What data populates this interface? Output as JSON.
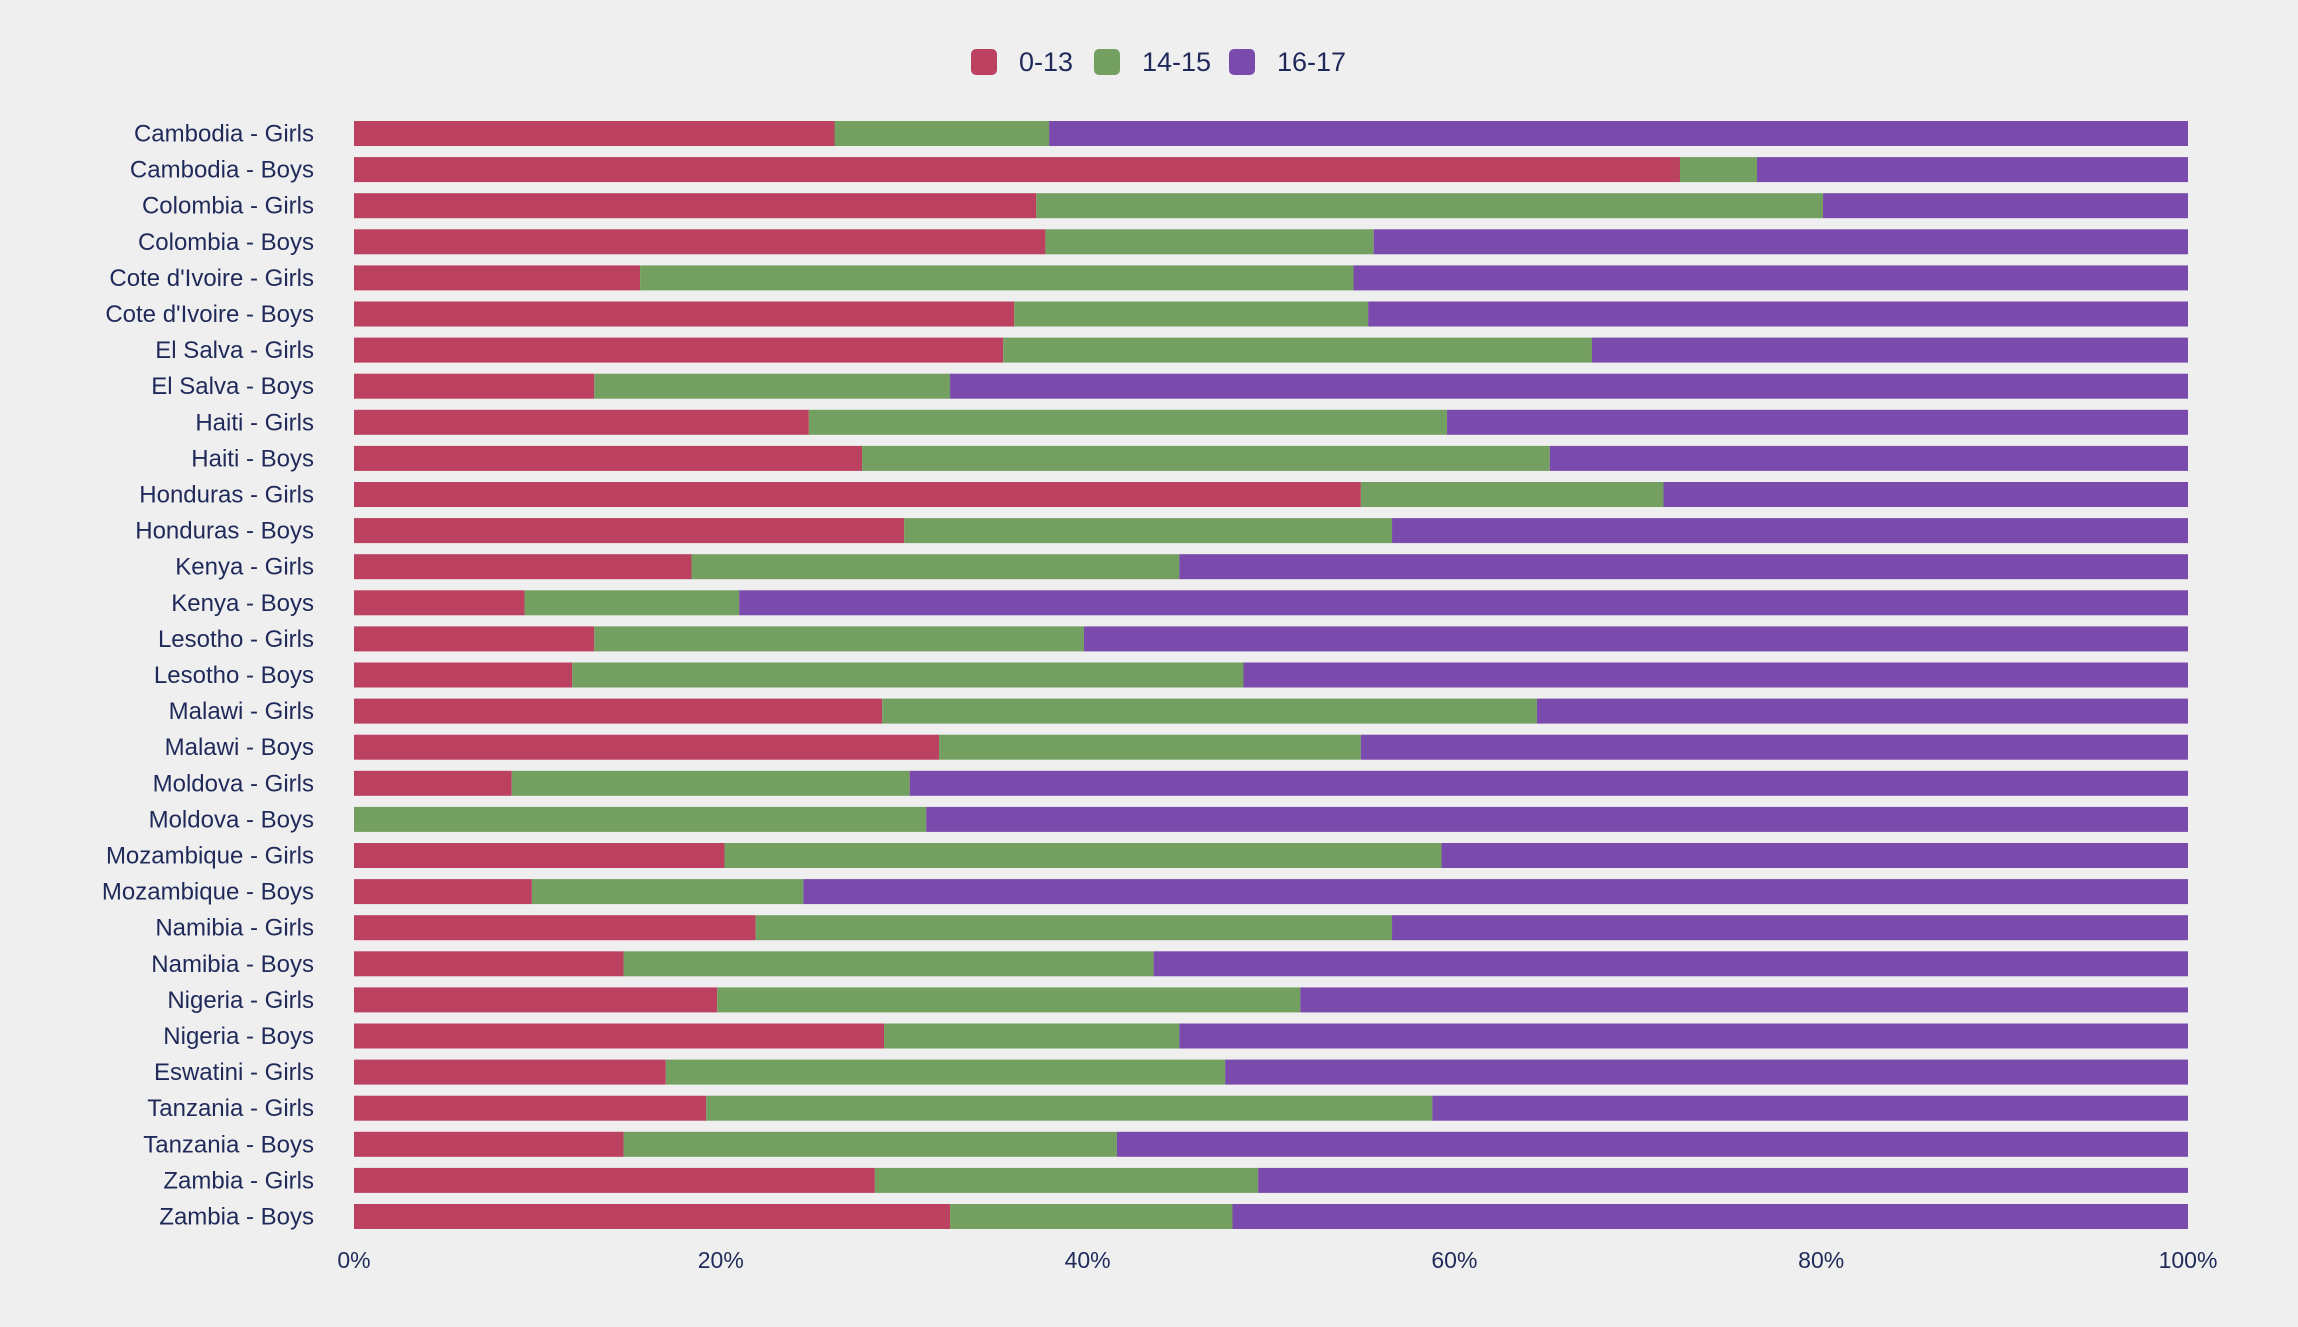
{
  "chart_data": {
    "type": "bar",
    "orientation": "horizontal",
    "stacked": true,
    "normalized": true,
    "legend": {
      "position": "top-center"
    },
    "colors": {
      "0-13": "#bc4060",
      "14-15": "#73a061",
      "16-17": "#7a4aac",
      "background": "#efefef",
      "text": "#1f2a5a"
    },
    "xlim": [
      0,
      100
    ],
    "xticks": [
      "0%",
      "20%",
      "40%",
      "60%",
      "80%",
      "100%"
    ],
    "categories": [
      "Cambodia - Girls",
      "Cambodia - Boys",
      "Colombia - Girls",
      "Colombia - Boys",
      "Cote d'Ivoire - Girls",
      "Cote d'Ivoire - Boys",
      "El Salva - Girls",
      "El Salva - Boys",
      "Haiti - Girls",
      "Haiti - Boys",
      "Honduras - Girls",
      "Honduras - Boys",
      "Kenya - Girls",
      "Kenya - Boys",
      "Lesotho - Girls",
      "Lesotho - Boys",
      "Malawi - Girls",
      "Malawi - Boys",
      "Moldova - Girls",
      "Moldova - Boys",
      "Mozambique - Girls",
      "Mozambique - Boys",
      "Namibia - Girls",
      "Namibia - Boys",
      "Nigeria - Girls",
      "Nigeria - Boys",
      "Eswatini - Girls",
      "Tanzania - Girls",
      "Tanzania - Boys",
      "Zambia - Girls",
      "Zambia - Boys"
    ],
    "series": [
      {
        "name": "0-13",
        "values": [
          26.2,
          72.3,
          37.2,
          37.7,
          15.6,
          36.0,
          35.4,
          13.1,
          24.8,
          27.7,
          54.9,
          30.0,
          18.4,
          9.3,
          13.1,
          11.9,
          28.8,
          31.9,
          8.6,
          0,
          20.2,
          9.7,
          21.9,
          14.7,
          19.8,
          28.9,
          17.0,
          19.2,
          14.7,
          28.4,
          32.5
        ]
      },
      {
        "name": "14-15",
        "values": [
          11.7,
          4.2,
          42.9,
          17.9,
          38.9,
          19.3,
          32.1,
          19.4,
          34.8,
          37.5,
          16.5,
          26.6,
          26.6,
          11.7,
          26.7,
          36.6,
          35.7,
          23.0,
          21.7,
          31.2,
          39.1,
          14.8,
          34.7,
          28.9,
          31.8,
          16.1,
          30.5,
          39.6,
          26.9,
          20.9,
          15.4
        ]
      },
      {
        "name": "16-17",
        "values": [
          62.1,
          23.5,
          19.9,
          44.4,
          45.5,
          44.7,
          32.5,
          67.5,
          40.4,
          34.8,
          28.6,
          43.4,
          55.0,
          79.0,
          60.2,
          51.5,
          35.5,
          45.1,
          69.7,
          68.8,
          40.7,
          75.5,
          43.4,
          56.4,
          48.4,
          55.0,
          52.5,
          41.2,
          58.4,
          50.7,
          52.1
        ]
      }
    ]
  }
}
